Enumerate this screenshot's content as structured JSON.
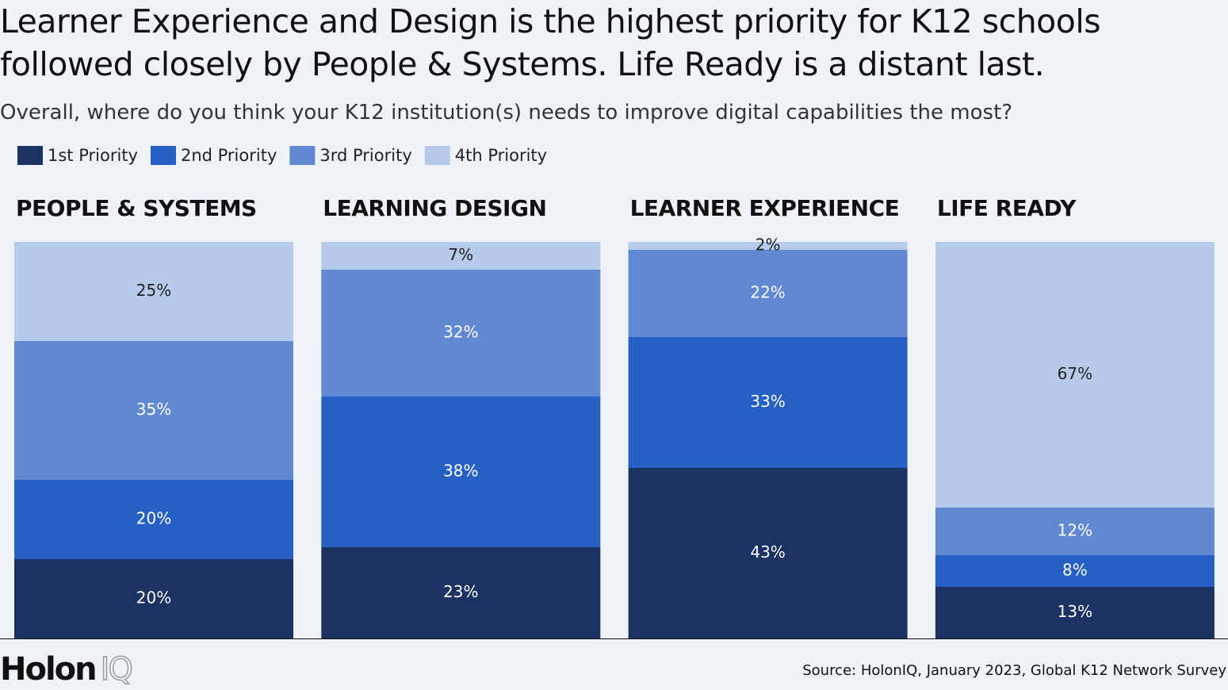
{
  "chart_data": {
    "type": "stacked_bar",
    "title": "Learner Experience and Design is the highest priority for K12 schools followed closely by People & Systems. Life Ready is a distant last.",
    "subtitle": "Overall, where do you think your K12 institution(s) needs to improve digital capabilities the most?",
    "categories": [
      "PEOPLE & SYSTEMS",
      "LEARNING DESIGN",
      "LEARNER EXPERIENCE",
      "LIFE READY"
    ],
    "series": [
      {
        "name": "1st Priority",
        "color": "#1b3263",
        "values": [
          20,
          23,
          43,
          13
        ],
        "value_labels": [
          "20%",
          "23%",
          "43%",
          "13%"
        ]
      },
      {
        "name": "2nd Priority",
        "color": "#2660c4",
        "values": [
          20,
          38,
          33,
          8
        ],
        "value_labels": [
          "20%",
          "38%",
          "33%",
          "8%"
        ]
      },
      {
        "name": "3rd Priority",
        "color": "#6189d2",
        "values": [
          35,
          32,
          22,
          12
        ],
        "value_labels": [
          "35%",
          "32%",
          "22%",
          "12%"
        ]
      },
      {
        "name": "4th Priority",
        "color": "#b6cbea",
        "values": [
          25,
          7,
          2,
          67
        ],
        "value_labels": [
          "25%",
          "7%",
          "2%",
          "67%"
        ]
      }
    ],
    "source": "Source: HolonIQ, January 2023, Global K12 Network Survey"
  },
  "logo": [
    "Holon",
    "IQ"
  ]
}
